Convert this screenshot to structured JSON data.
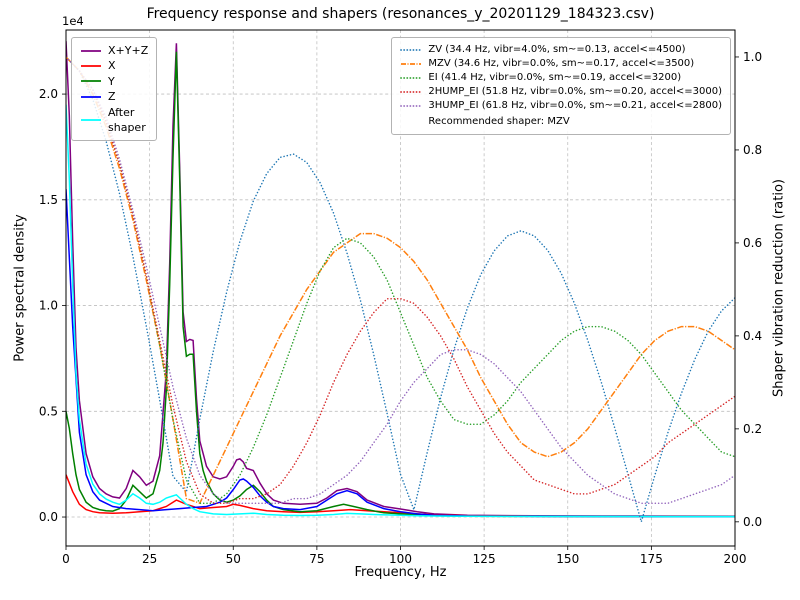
{
  "chart": {
    "title": "Frequency response and shapers (resonances_y_20201129_184323.csv)",
    "xlabel": "Frequency, Hz",
    "ylabel_left": "Power spectral density",
    "ylabel_right": "Shaper vibration reduction (ratio)",
    "offset_label": "1e4"
  },
  "chart_data": {
    "type": "line",
    "axes": {
      "x": {
        "min": 0,
        "max": 200,
        "ticks": [
          0,
          25,
          50,
          75,
          100,
          125,
          150,
          175,
          200
        ],
        "tick_labels": [
          "0",
          "25",
          "50",
          "75",
          "100",
          "125",
          "150",
          "175",
          "200"
        ]
      },
      "y_left": {
        "min": -1370,
        "max": 23030,
        "ticks": [
          0,
          5000,
          10000,
          15000,
          20000
        ],
        "tick_labels": [
          "0.0",
          "0.5",
          "1.0",
          "1.5",
          "2.0"
        ],
        "multiplier": "1e4"
      },
      "y_right": {
        "min": -0.052,
        "max": 1.058,
        "ticks": [
          0,
          0.2,
          0.4,
          0.6,
          0.8,
          1.0
        ],
        "tick_labels": [
          "0.0",
          "0.2",
          "0.4",
          "0.6",
          "0.8",
          "1.0"
        ]
      }
    },
    "grid": true,
    "shaper_frequencies": [
      0,
      4,
      8,
      12,
      16,
      20,
      24,
      28,
      32,
      36,
      40,
      44,
      48,
      52,
      56,
      60,
      64,
      68,
      72,
      76,
      80,
      84,
      88,
      92,
      96,
      100,
      104,
      108,
      112,
      116,
      120,
      124,
      128,
      132,
      136,
      140,
      144,
      148,
      152,
      156,
      160,
      164,
      168,
      172,
      176,
      180,
      184,
      188,
      192,
      196,
      200
    ],
    "series": [
      {
        "name": "X+Y+Z",
        "axis": "left",
        "color": "#800080",
        "style": "solid",
        "x": [
          0,
          1,
          2,
          3,
          4,
          6,
          8,
          10,
          12,
          14,
          16,
          18,
          20,
          22,
          24,
          26,
          28,
          30,
          31,
          32,
          33,
          34,
          35,
          36,
          37,
          38,
          39,
          40,
          42,
          44,
          46,
          48,
          50,
          51,
          52,
          53,
          54,
          56,
          58,
          60,
          62,
          65,
          70,
          75,
          78,
          81,
          84,
          87,
          90,
          95,
          100,
          105,
          110,
          120,
          140,
          160,
          180,
          200
        ],
        "y": [
          22500,
          19000,
          13000,
          8000,
          5500,
          3000,
          1900,
          1350,
          1100,
          950,
          900,
          1350,
          2200,
          1900,
          1500,
          1700,
          2900,
          6900,
          12000,
          18500,
          22400,
          16500,
          9700,
          8300,
          8400,
          8350,
          5600,
          3600,
          2400,
          1900,
          1800,
          1900,
          2400,
          2700,
          2750,
          2600,
          2300,
          2200,
          1600,
          1100,
          800,
          650,
          600,
          650,
          900,
          1250,
          1350,
          1200,
          800,
          500,
          380,
          250,
          150,
          80,
          60,
          50,
          45,
          40
        ]
      },
      {
        "name": "X",
        "axis": "left",
        "color": "#ff0000",
        "style": "solid",
        "x": [
          0,
          2,
          4,
          6,
          8,
          10,
          14,
          18,
          22,
          26,
          30,
          33,
          36,
          40,
          44,
          48,
          50,
          52,
          56,
          60,
          65,
          70,
          75,
          80,
          85,
          90,
          95,
          100,
          105,
          110,
          120,
          140,
          160,
          180,
          200
        ],
        "y": [
          2000,
          1200,
          600,
          350,
          250,
          200,
          180,
          200,
          250,
          300,
          500,
          800,
          600,
          400,
          450,
          500,
          600,
          550,
          400,
          300,
          250,
          220,
          250,
          300,
          350,
          300,
          250,
          200,
          150,
          100,
          60,
          40,
          30,
          25,
          20
        ]
      },
      {
        "name": "Y",
        "axis": "left",
        "color": "#008000",
        "style": "solid",
        "x": [
          0,
          1,
          2,
          3,
          4,
          6,
          8,
          10,
          12,
          14,
          16,
          18,
          20,
          22,
          24,
          26,
          28,
          29,
          30,
          31,
          32,
          33,
          34,
          35,
          36,
          37,
          38,
          39,
          40,
          41,
          42,
          44,
          46,
          48,
          50,
          52,
          54,
          56,
          58,
          60,
          62,
          65,
          70,
          75,
          80,
          83,
          86,
          90,
          95,
          100,
          105,
          110,
          120,
          140,
          160,
          180,
          200
        ],
        "y": [
          5000,
          4200,
          3000,
          2000,
          1300,
          700,
          450,
          350,
          300,
          280,
          400,
          800,
          1500,
          1200,
          900,
          1100,
          2200,
          3500,
          6000,
          11000,
          17000,
          22000,
          16000,
          9000,
          7600,
          7700,
          7700,
          5000,
          3000,
          2200,
          1700,
          1100,
          800,
          700,
          800,
          1000,
          1300,
          1500,
          1200,
          800,
          500,
          350,
          250,
          300,
          500,
          600,
          500,
          350,
          200,
          150,
          100,
          60,
          40,
          30,
          25,
          20,
          20
        ]
      },
      {
        "name": "Z",
        "axis": "left",
        "color": "#0000ff",
        "style": "solid",
        "x": [
          0,
          2,
          4,
          6,
          8,
          10,
          14,
          18,
          22,
          26,
          30,
          34,
          38,
          42,
          46,
          48,
          50,
          52,
          53,
          54,
          56,
          58,
          60,
          62,
          65,
          70,
          75,
          78,
          81,
          84,
          87,
          90,
          95,
          100,
          105,
          110,
          120,
          140,
          160,
          180,
          200
        ],
        "y": [
          15500,
          9000,
          4000,
          2000,
          1200,
          800,
          500,
          400,
          350,
          300,
          350,
          400,
          450,
          500,
          700,
          900,
          1300,
          1750,
          1800,
          1700,
          1400,
          1000,
          700,
          500,
          400,
          350,
          500,
          800,
          1100,
          1250,
          1100,
          700,
          400,
          250,
          150,
          80,
          50,
          30,
          25,
          20,
          20
        ]
      },
      {
        "name": "After shaper",
        "axis": "left",
        "color": "#00ffff",
        "style": "solid",
        "x": [
          0,
          1,
          2,
          3,
          4,
          6,
          8,
          10,
          12,
          14,
          16,
          18,
          20,
          22,
          24,
          26,
          28,
          30,
          32,
          33,
          34,
          36,
          38,
          40,
          44,
          48,
          52,
          56,
          60,
          65,
          70,
          75,
          80,
          84,
          88,
          92,
          96,
          100,
          105,
          110,
          120,
          140,
          160,
          180,
          200
        ],
        "y": [
          19500,
          16000,
          11000,
          6800,
          4600,
          2500,
          1550,
          1100,
          850,
          700,
          600,
          800,
          1100,
          900,
          650,
          600,
          700,
          900,
          1000,
          1050,
          900,
          600,
          400,
          250,
          150,
          120,
          150,
          180,
          120,
          80,
          70,
          80,
          120,
          170,
          150,
          120,
          100,
          80,
          60,
          50,
          40,
          30,
          25,
          20,
          20
        ]
      },
      {
        "name": "ZV",
        "axis": "right",
        "color": "#1f77b4",
        "style": "dotted",
        "x_ref": "shaper_frequencies",
        "y": [
          1.0,
          0.97,
          0.909,
          0.819,
          0.706,
          0.571,
          0.421,
          0.262,
          0.098,
          0.064,
          0.221,
          0.366,
          0.494,
          0.603,
          0.69,
          0.749,
          0.784,
          0.791,
          0.773,
          0.729,
          0.664,
          0.578,
          0.477,
          0.36,
          0.233,
          0.102,
          0.026,
          0.15,
          0.267,
          0.371,
          0.46,
          0.532,
          0.583,
          0.615,
          0.626,
          0.615,
          0.584,
          0.535,
          0.47,
          0.39,
          0.301,
          0.203,
          0.102,
          0.0,
          0.099,
          0.193,
          0.277,
          0.35,
          0.41,
          0.454,
          0.482
        ]
      },
      {
        "name": "MZV",
        "axis": "right",
        "color": "#ff7f0e",
        "style": "dashdot",
        "x_ref": "shaper_frequencies",
        "y": [
          1.0,
          0.97,
          0.92,
          0.85,
          0.76,
          0.65,
          0.52,
          0.38,
          0.22,
          0.05,
          0.04,
          0.1,
          0.16,
          0.22,
          0.28,
          0.34,
          0.4,
          0.45,
          0.5,
          0.54,
          0.58,
          0.6,
          0.62,
          0.62,
          0.61,
          0.59,
          0.56,
          0.52,
          0.47,
          0.42,
          0.37,
          0.31,
          0.26,
          0.21,
          0.17,
          0.15,
          0.14,
          0.15,
          0.17,
          0.2,
          0.24,
          0.28,
          0.32,
          0.36,
          0.39,
          0.41,
          0.42,
          0.42,
          0.41,
          0.39,
          0.37
        ]
      },
      {
        "name": "EI",
        "axis": "right",
        "color": "#2ca02c",
        "style": "dotted",
        "x_ref": "shaper_frequencies",
        "y": [
          1.0,
          0.97,
          0.93,
          0.86,
          0.77,
          0.66,
          0.53,
          0.38,
          0.22,
          0.09,
          0.04,
          0.04,
          0.06,
          0.1,
          0.16,
          0.23,
          0.31,
          0.39,
          0.47,
          0.54,
          0.59,
          0.61,
          0.6,
          0.57,
          0.52,
          0.45,
          0.38,
          0.31,
          0.26,
          0.22,
          0.21,
          0.21,
          0.23,
          0.26,
          0.3,
          0.33,
          0.36,
          0.39,
          0.41,
          0.42,
          0.42,
          0.41,
          0.39,
          0.36,
          0.32,
          0.28,
          0.24,
          0.21,
          0.18,
          0.15,
          0.14
        ]
      },
      {
        "name": "2HUMP_EI",
        "axis": "right",
        "color": "#d62728",
        "style": "dotted",
        "x_ref": "shaper_frequencies",
        "y": [
          1.0,
          0.97,
          0.93,
          0.86,
          0.77,
          0.66,
          0.53,
          0.39,
          0.25,
          0.13,
          0.06,
          0.04,
          0.04,
          0.05,
          0.05,
          0.06,
          0.08,
          0.12,
          0.17,
          0.23,
          0.3,
          0.36,
          0.41,
          0.45,
          0.48,
          0.48,
          0.47,
          0.44,
          0.4,
          0.35,
          0.29,
          0.24,
          0.19,
          0.15,
          0.12,
          0.09,
          0.08,
          0.07,
          0.06,
          0.06,
          0.07,
          0.08,
          0.1,
          0.12,
          0.14,
          0.17,
          0.19,
          0.21,
          0.23,
          0.25,
          0.27
        ]
      },
      {
        "name": "3HUMP_EI",
        "axis": "right",
        "color": "#9467bd",
        "style": "dotted",
        "x_ref": "shaper_frequencies",
        "y": [
          1.0,
          0.97,
          0.93,
          0.87,
          0.78,
          0.67,
          0.55,
          0.42,
          0.29,
          0.18,
          0.1,
          0.06,
          0.04,
          0.04,
          0.04,
          0.04,
          0.04,
          0.05,
          0.05,
          0.06,
          0.08,
          0.1,
          0.13,
          0.17,
          0.21,
          0.26,
          0.3,
          0.33,
          0.36,
          0.37,
          0.37,
          0.36,
          0.34,
          0.31,
          0.28,
          0.24,
          0.2,
          0.16,
          0.13,
          0.1,
          0.08,
          0.06,
          0.05,
          0.04,
          0.04,
          0.04,
          0.05,
          0.06,
          0.07,
          0.08,
          0.1
        ]
      }
    ],
    "legend_psd": {
      "items": [
        {
          "label": "X+Y+Z",
          "color": "#800080",
          "style": "solid"
        },
        {
          "label": "X",
          "color": "#ff0000",
          "style": "solid"
        },
        {
          "label": "Y",
          "color": "#008000",
          "style": "solid"
        },
        {
          "label": "Z",
          "color": "#0000ff",
          "style": "solid"
        },
        {
          "label": "After\nshaper",
          "color": "#00ffff",
          "style": "solid"
        }
      ]
    },
    "legend_shapers": {
      "items": [
        {
          "label": "ZV (34.4 Hz, vibr=4.0%, sm~=0.13, accel<=4500)",
          "color": "#1f77b4",
          "style": "dotted"
        },
        {
          "label": "MZV (34.6 Hz, vibr=0.0%, sm~=0.17, accel<=3500)",
          "color": "#ff7f0e",
          "style": "dashdot"
        },
        {
          "label": "EI (41.4 Hz, vibr=0.0%, sm~=0.19, accel<=3200)",
          "color": "#2ca02c",
          "style": "dotted"
        },
        {
          "label": "2HUMP_EI (51.8 Hz, vibr=0.0%, sm~=0.20, accel<=3000)",
          "color": "#d62728",
          "style": "dotted"
        },
        {
          "label": "3HUMP_EI (61.8 Hz, vibr=0.0%, sm~=0.21, accel<=2800)",
          "color": "#9467bd",
          "style": "dotted"
        }
      ],
      "footer": "Recommended shaper: MZV"
    }
  }
}
